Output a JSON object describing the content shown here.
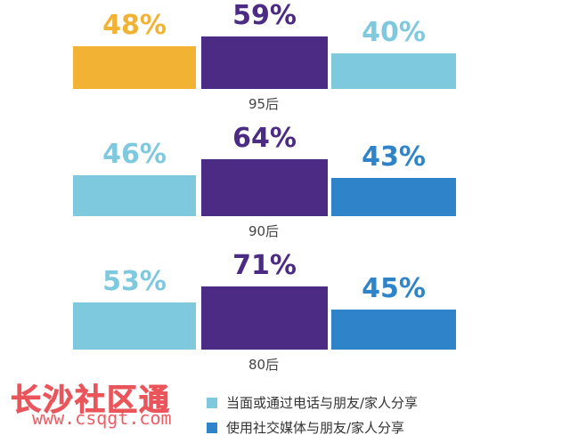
{
  "chart_data": {
    "type": "bar",
    "groups": [
      {
        "label": "95后",
        "values": [
          48,
          59,
          40
        ],
        "value_labels": [
          "48%",
          "59%",
          "40%"
        ]
      },
      {
        "label": "90后",
        "values": [
          46,
          64,
          43
        ],
        "value_labels": [
          "46%",
          "64%",
          "43%"
        ]
      },
      {
        "label": "80后",
        "values": [
          53,
          71,
          45
        ],
        "value_labels": [
          "53%",
          "71%",
          "45%"
        ]
      }
    ],
    "bar_colors": [
      [
        "#f2b234",
        "#4b2b83",
        "#7fc9df"
      ],
      [
        "#7fc9df",
        "#4b2b83",
        "#2f84c9"
      ],
      [
        "#7fc9df",
        "#4b2b83",
        "#2f84c9"
      ]
    ],
    "label_colors": [
      [
        "#f2b234",
        "#4b2b83",
        "#7fc9df"
      ],
      [
        "#7fc9df",
        "#4b2b83",
        "#2f84c9"
      ],
      [
        "#7fc9df",
        "#4b2b83",
        "#2f84c9"
      ]
    ],
    "legend": [
      {
        "label": "当面或通过电话与朋友/家人分享",
        "color": "#7fc9df"
      },
      {
        "label": "使用社交媒体与朋友/家人分享",
        "color": "#2f84c9"
      }
    ]
  },
  "watermark": {
    "text": "长沙社区通",
    "url": "www.csqgt.com"
  }
}
